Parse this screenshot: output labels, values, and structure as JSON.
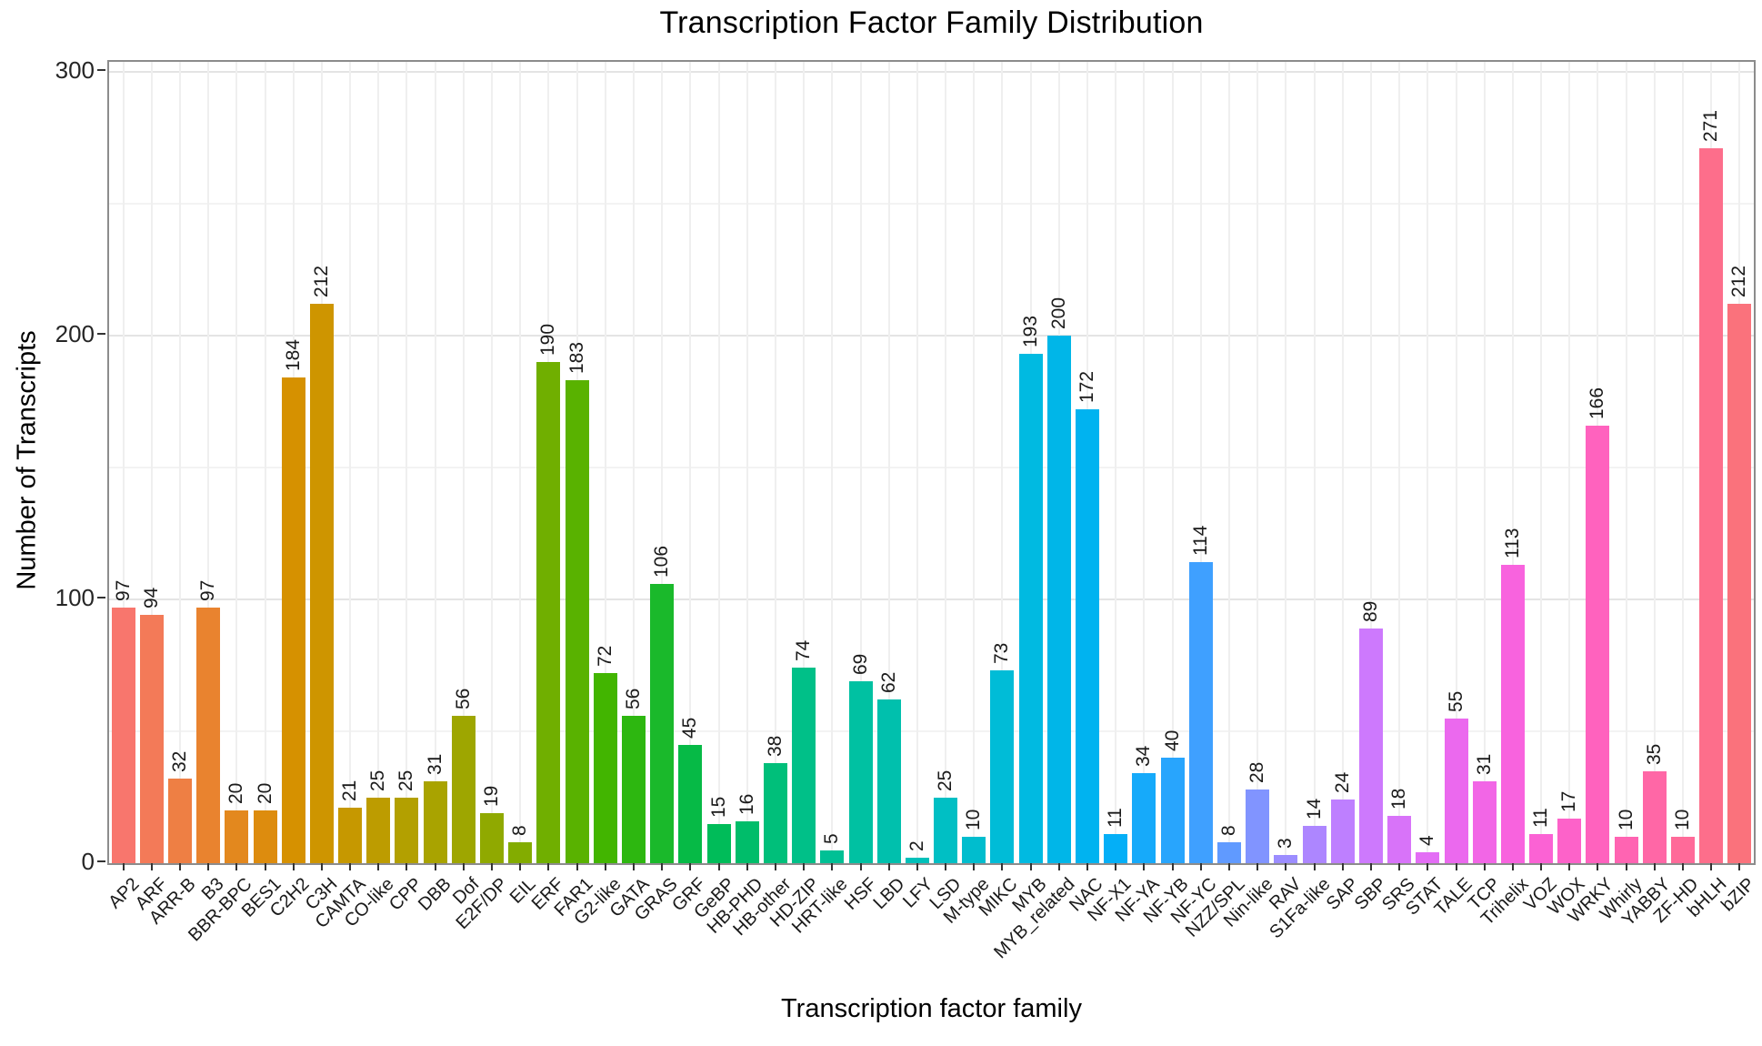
{
  "chart_data": {
    "type": "bar",
    "title": "Transcription Factor Family Distribution",
    "xlabel": "Transcription factor family",
    "ylabel": "Number of Transcripts",
    "ylim": [
      0,
      303
    ],
    "yticks": [
      0,
      100,
      200,
      300
    ],
    "yticks_minor": [
      50,
      150,
      250
    ],
    "grid": true,
    "legend": "none",
    "value_labels_rotated": true,
    "categories": [
      "AP2",
      "ARF",
      "ARR-B",
      "B3",
      "BBR-BPC",
      "BES1",
      "C2H2",
      "C3H",
      "CAMTA",
      "CO-like",
      "CPP",
      "DBB",
      "Dof",
      "E2F/DP",
      "EIL",
      "ERF",
      "FAR1",
      "G2-like",
      "GATA",
      "GRAS",
      "GRF",
      "GeBP",
      "HB-PHD",
      "HB-other",
      "HD-ZIP",
      "HRT-like",
      "HSF",
      "LBD",
      "LFY",
      "LSD",
      "M-type",
      "MIKC",
      "MYB",
      "MYB_related",
      "NAC",
      "NF-X1",
      "NF-YA",
      "NF-YB",
      "NF-YC",
      "NZZ/SPL",
      "Nin-like",
      "RAV",
      "S1Fa-like",
      "SAP",
      "SBP",
      "SRS",
      "STAT",
      "TALE",
      "TCP",
      "Trihelix",
      "VOZ",
      "WOX",
      "WRKY",
      "Whirly",
      "YABBY",
      "ZF-HD",
      "bHLH",
      "bZIP"
    ],
    "values": [
      97,
      94,
      32,
      97,
      20,
      20,
      184,
      212,
      21,
      25,
      25,
      31,
      56,
      19,
      8,
      190,
      183,
      72,
      56,
      106,
      45,
      15,
      16,
      38,
      74,
      5,
      69,
      62,
      2,
      25,
      10,
      73,
      193,
      200,
      172,
      11,
      34,
      40,
      114,
      8,
      28,
      3,
      14,
      24,
      89,
      18,
      4,
      55,
      31,
      113,
      11,
      17,
      166,
      10,
      35,
      10,
      271,
      212
    ],
    "bar_colors": [
      "#F8766D",
      "#F37A58",
      "#EE7F44",
      "#E9832F",
      "#E3881E",
      "#DD8C0E",
      "#D69100",
      "#CE9500",
      "#C69800",
      "#BD9C00",
      "#B3A000",
      "#A9A300",
      "#9EA600",
      "#90A900",
      "#83AC00",
      "#70AF00",
      "#59B200",
      "#42B500",
      "#2DB710",
      "#1AB92B",
      "#06BA46",
      "#00BC59",
      "#00BD6A",
      "#00BF7A",
      "#00C088",
      "#00C095",
      "#00C1A2",
      "#00C0AD",
      "#00C0B9",
      "#00BFC4",
      "#00BDCE",
      "#00BCD7",
      "#00BAE1",
      "#00B6E8",
      "#00B3F0",
      "#04AFF7",
      "#16AAFA",
      "#28A5FD",
      "#3FA0FF",
      "#609AFF",
      "#8194FF",
      "#9C8DFF",
      "#AD86FF",
      "#BE7FFF",
      "#CD79FD",
      "#D873F9",
      "#E36DF5",
      "#EB69EE",
      "#F266E6",
      "#F863DE",
      "#FB62D4",
      "#FD62C9",
      "#FF62BE",
      "#FF64B2",
      "#FF67A6",
      "#FF6A99",
      "#FD6E8B",
      "#FA727C"
    ],
    "style": {
      "panel_border": "#8c8c8c",
      "grid_major": "#e4e4e4",
      "grid_minor": "#f3f3f3",
      "grid_vertical": "#efefef",
      "tick_mark": "#333333",
      "axis_text": "#262626",
      "value_label_text": "#1a1a1a",
      "background": "#ffffff"
    }
  }
}
